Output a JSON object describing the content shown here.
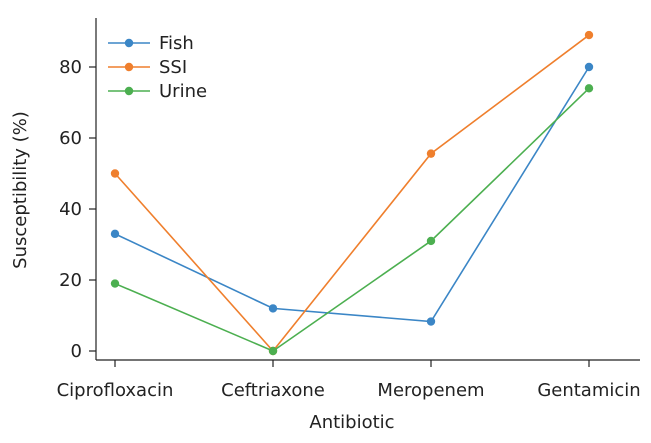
{
  "chart_data": {
    "type": "line",
    "title": "",
    "xlabel": "Antibiotic",
    "ylabel": "Susceptibility (%)",
    "categories": [
      "Ciprofloxacin",
      "Ceftriaxone",
      "Meropenem",
      "Gentamicin"
    ],
    "ylim": [
      0,
      90
    ],
    "yticks": [
      0,
      20,
      40,
      60,
      80
    ],
    "grid": false,
    "legend_position": "top-left",
    "series": [
      {
        "name": "Fish",
        "color": "#3b86c6",
        "values": [
          33,
          12,
          8.3,
          80
        ]
      },
      {
        "name": "SSI",
        "color": "#ef7f2d",
        "values": [
          50,
          0,
          55.6,
          89
        ]
      },
      {
        "name": "Urine",
        "color": "#4caf50",
        "values": [
          19,
          0,
          31,
          74
        ]
      }
    ]
  }
}
